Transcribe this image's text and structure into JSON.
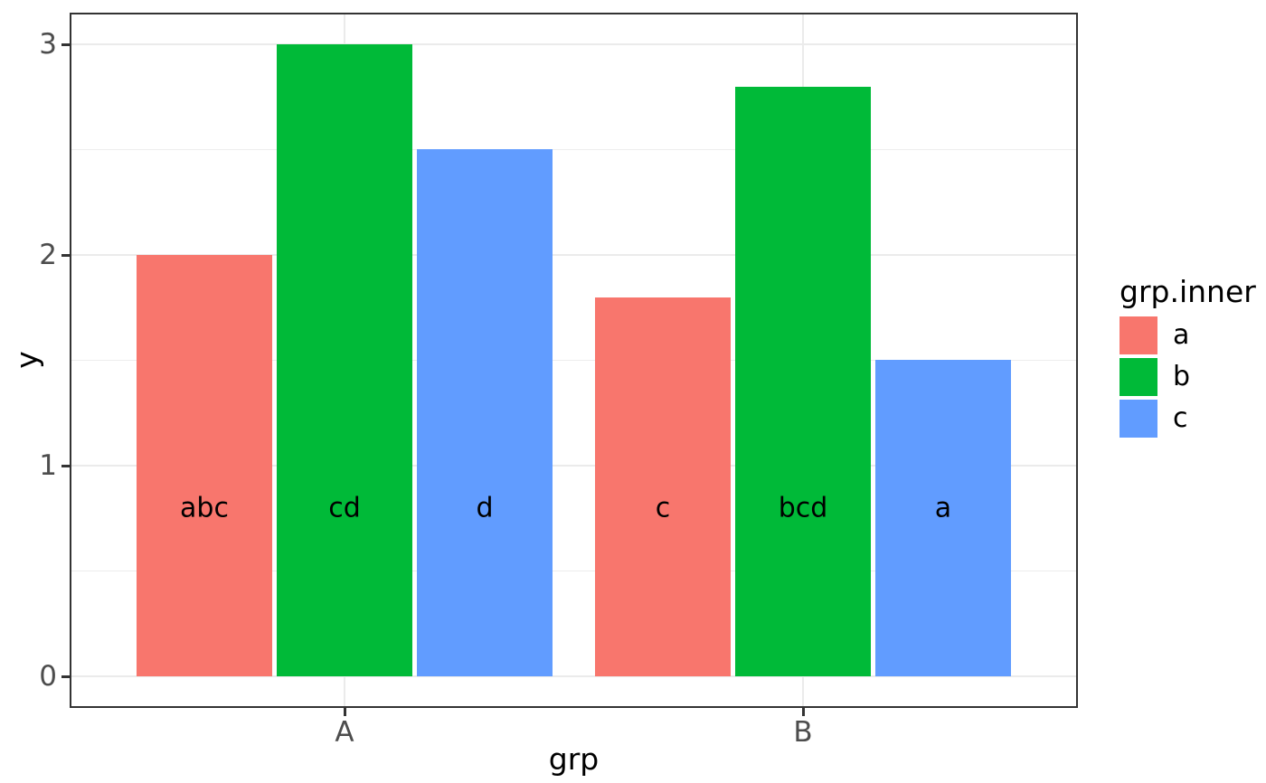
{
  "chart_data": {
    "type": "bar",
    "mode": "dodged",
    "title": "",
    "xlabel": "grp",
    "ylabel": "y",
    "categories": [
      "A",
      "B"
    ],
    "series": [
      {
        "name": "a",
        "color": "#F8766D",
        "values": [
          2.0,
          1.8
        ],
        "bar_labels": [
          "abc",
          "c"
        ]
      },
      {
        "name": "b",
        "color": "#00BA38",
        "values": [
          3.0,
          2.8
        ],
        "bar_labels": [
          "cd",
          "bcd"
        ]
      },
      {
        "name": "c",
        "color": "#619CFF",
        "values": [
          2.5,
          1.5
        ],
        "bar_labels": [
          "d",
          "a"
        ]
      }
    ],
    "bar_label_y": 0.8,
    "ylim": [
      0,
      3
    ],
    "yticks": [
      "0",
      "1",
      "2",
      "3"
    ],
    "ytick_values": [
      0,
      1,
      2,
      3
    ],
    "yticks_minor": [
      0.5,
      1.5,
      2.5
    ],
    "grid": "major-and-minor",
    "legend": {
      "title": "grp.inner",
      "position": "right",
      "entries": [
        "a",
        "b",
        "c"
      ]
    },
    "colors": {
      "background": "#FFFFFF",
      "panel_background": "#FFFFFF",
      "panel_border": "#333333",
      "grid_major": "#EBEBEB",
      "grid_minor": "#EDEDED",
      "tick_marks": "#333333",
      "tick_text": "#4D4D4D",
      "title_text": "#000000",
      "bar_label_text": "#000000"
    }
  }
}
